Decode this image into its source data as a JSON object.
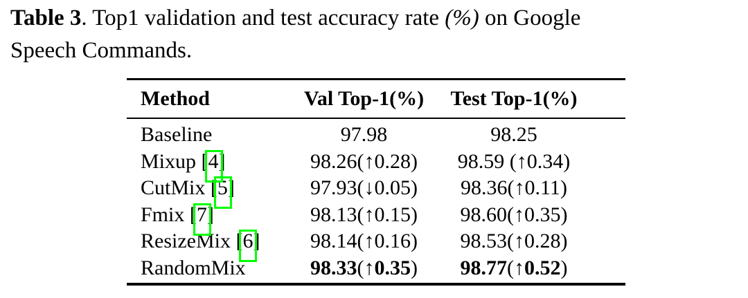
{
  "caption": {
    "label": "Table 3",
    "line1_mid": ". Top1 validation and test accuracy rate ",
    "line1_pct": "(%)",
    "line1_end": " on Google",
    "line2": "Speech Commands."
  },
  "colors": {
    "text": "#000000",
    "background": "#ffffff",
    "citation_box": "#00ff00"
  },
  "table": {
    "columns": [
      "Method",
      "Val Top-1(%)",
      "Test Top-1(%)"
    ],
    "rows": [
      {
        "method_pre": "Baseline",
        "val": {
          "main": "97.98",
          "arrow": "",
          "delta": "",
          "close": ""
        },
        "test": {
          "main": "98.25",
          "arrow": "",
          "delta": "",
          "close": ""
        },
        "emphasized": false
      },
      {
        "method_pre": "Mixup [",
        "cite": "4",
        "method_post": "]",
        "val": {
          "main": "98.26",
          "arrow": "(↑",
          "delta": "0.28",
          "close": ")"
        },
        "test": {
          "main": "98.59",
          "arrow": " (↑",
          "delta": "0.34",
          "close": ")"
        },
        "emphasized": false
      },
      {
        "method_pre": "CutMix [",
        "cite": "5",
        "method_post": "]",
        "val": {
          "main": "97.93",
          "arrow": "(↓",
          "delta": "0.05",
          "close": ")"
        },
        "test": {
          "main": "98.36",
          "arrow": "(↑",
          "delta": "0.11",
          "close": ")"
        },
        "emphasized": false
      },
      {
        "method_pre": "Fmix [",
        "cite": "7",
        "method_post": "]",
        "val": {
          "main": "98.13",
          "arrow": "(↑",
          "delta": "0.15",
          "close": ")"
        },
        "test": {
          "main": "98.60",
          "arrow": "(↑",
          "delta": "0.35",
          "close": ")"
        },
        "emphasized": false
      },
      {
        "method_pre": "ResizeMix [",
        "cite": "6",
        "method_post": "]",
        "val": {
          "main": "98.14",
          "arrow": "(↑",
          "delta": "0.16",
          "close": ")"
        },
        "test": {
          "main": "98.53",
          "arrow": "(↑",
          "delta": "0.28",
          "close": ")"
        },
        "emphasized": false
      },
      {
        "method_pre": "RandomMix",
        "val": {
          "main": "98.33",
          "arrow": "(↑",
          "delta": "0.35",
          "close": ")"
        },
        "test": {
          "main": "98.77",
          "arrow": "(↑",
          "delta": "0.52",
          "close": ")"
        },
        "emphasized": true
      }
    ]
  }
}
